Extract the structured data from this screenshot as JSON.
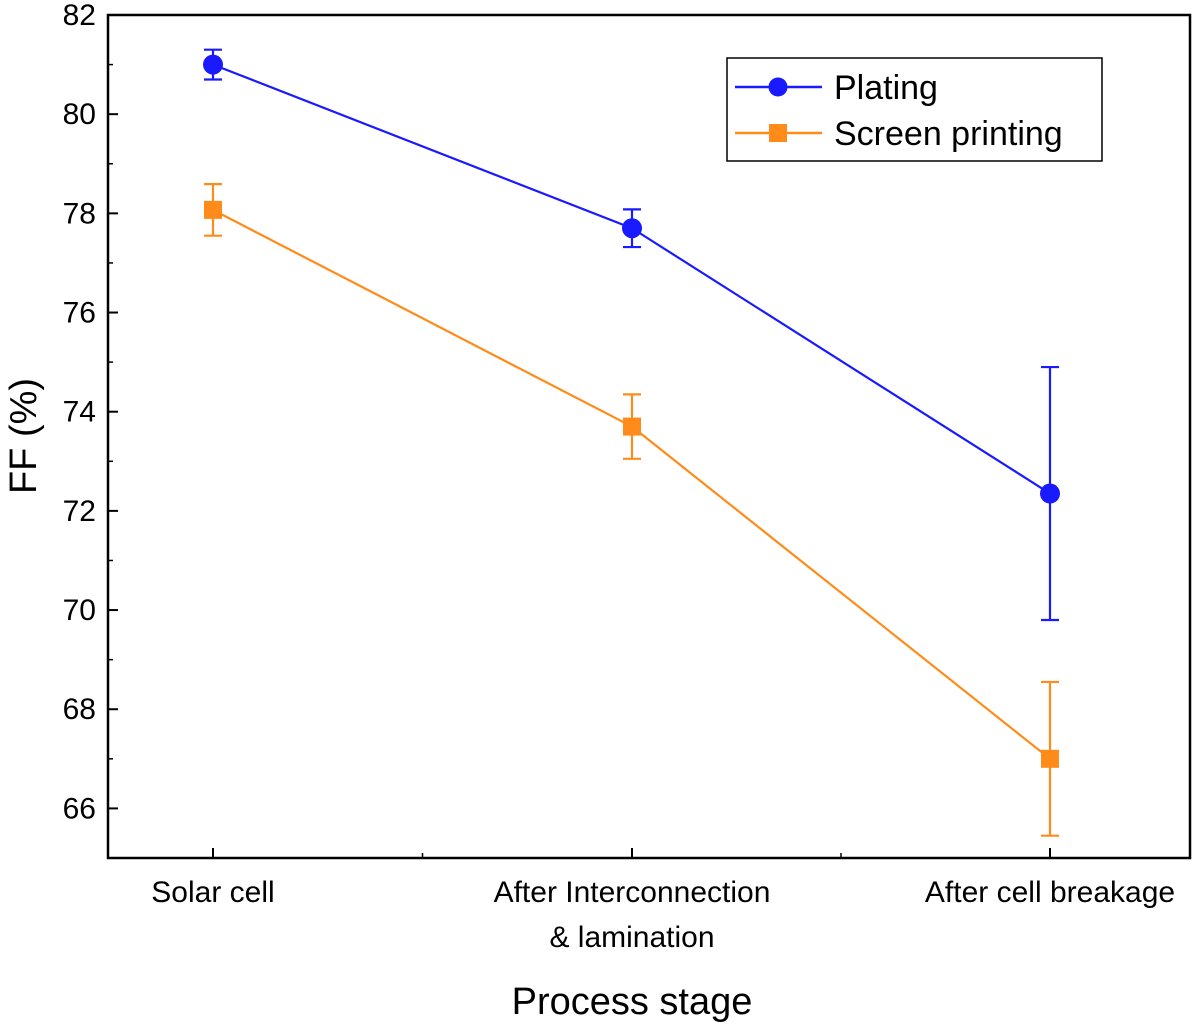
{
  "chart_data": {
    "type": "line",
    "title": "",
    "xlabel": "Process stage",
    "ylabel": "FF (%)",
    "ylim": [
      65,
      82
    ],
    "yticks": [
      66,
      68,
      70,
      72,
      74,
      76,
      78,
      80,
      82
    ],
    "categories": [
      [
        "Solar cell"
      ],
      [
        "After Interconnection",
        "& lamination"
      ],
      [
        "After cell breakage"
      ]
    ],
    "legend_position": "top-right",
    "series": [
      {
        "name": "Plating",
        "color": "#1a1aff",
        "marker": "circle",
        "values": [
          81.0,
          77.7,
          72.35
        ],
        "errors": [
          0.3,
          0.38,
          2.55
        ]
      },
      {
        "name": "Screen printing",
        "color": "#ff8c1a",
        "marker": "square",
        "values": [
          78.07,
          73.7,
          67.0
        ],
        "errors": [
          0.52,
          0.65,
          1.55
        ]
      }
    ]
  }
}
